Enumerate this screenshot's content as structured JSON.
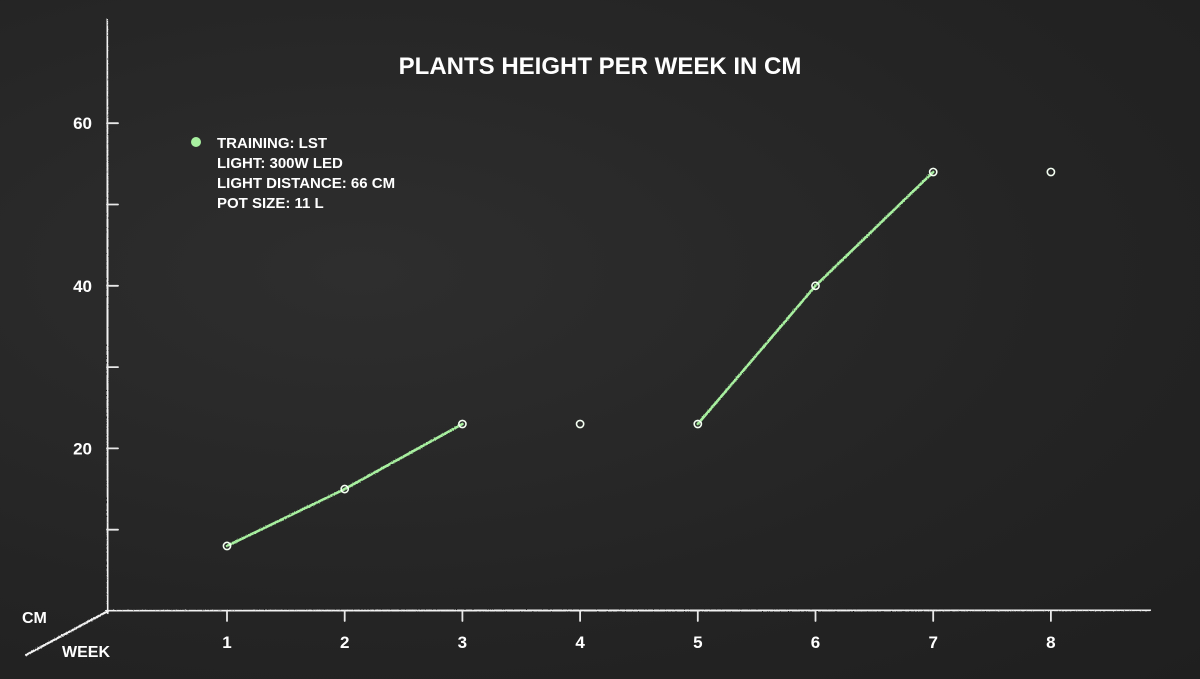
{
  "chart_data": {
    "type": "line",
    "title": "PLANTS HEIGHT PER WEEK IN CM",
    "xlabel": "WEEK",
    "ylabel": "CM",
    "x": [
      1,
      2,
      3,
      4,
      5,
      6,
      7,
      8
    ],
    "ylim": [
      0,
      70
    ],
    "yticks": [
      10,
      20,
      30,
      40,
      50,
      60
    ],
    "ytick_labels": [
      "",
      "20",
      "",
      "40",
      "",
      "60"
    ],
    "xtick_labels": [
      "1",
      "2",
      "3",
      "4",
      "5",
      "6",
      "7",
      "8"
    ],
    "series": [
      {
        "values": [
          8,
          15,
          23,
          23,
          23,
          40,
          54,
          54
        ],
        "color": "#a8f0a0"
      }
    ],
    "legend": {
      "position": "top-left",
      "lines": [
        "TRAINING: LST",
        "LIGHT: 300W LED",
        "LIGHT DISTANCE: 66 CM",
        "POT SIZE: 11 L"
      ]
    },
    "grid": false
  }
}
